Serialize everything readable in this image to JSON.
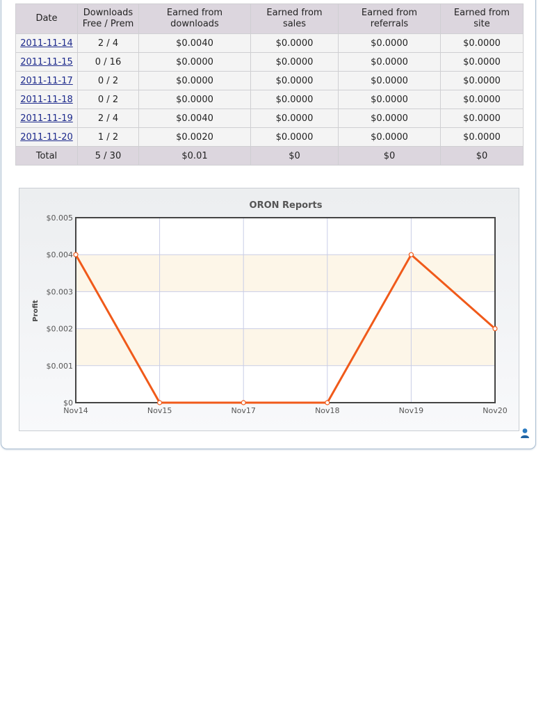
{
  "table": {
    "headers": [
      [
        "Date"
      ],
      [
        "Downloads",
        "Free / Prem"
      ],
      [
        "Earned from",
        "downloads"
      ],
      [
        "Earned from",
        "sales"
      ],
      [
        "Earned from",
        "referrals"
      ],
      [
        "Earned from",
        "site"
      ]
    ],
    "rows": [
      {
        "date": "2011-11-14",
        "downloads": "2 / 4",
        "earned_downloads": "$0.0040",
        "earned_sales": "$0.0000",
        "earned_referrals": "$0.0000",
        "earned_site": "$0.0000"
      },
      {
        "date": "2011-11-15",
        "downloads": "0 / 16",
        "earned_downloads": "$0.0000",
        "earned_sales": "$0.0000",
        "earned_referrals": "$0.0000",
        "earned_site": "$0.0000"
      },
      {
        "date": "2011-11-17",
        "downloads": "0 / 2",
        "earned_downloads": "$0.0000",
        "earned_sales": "$0.0000",
        "earned_referrals": "$0.0000",
        "earned_site": "$0.0000"
      },
      {
        "date": "2011-11-18",
        "downloads": "0 / 2",
        "earned_downloads": "$0.0000",
        "earned_sales": "$0.0000",
        "earned_referrals": "$0.0000",
        "earned_site": "$0.0000"
      },
      {
        "date": "2011-11-19",
        "downloads": "2 / 4",
        "earned_downloads": "$0.0040",
        "earned_sales": "$0.0000",
        "earned_referrals": "$0.0000",
        "earned_site": "$0.0000"
      },
      {
        "date": "2011-11-20",
        "downloads": "1 / 2",
        "earned_downloads": "$0.0020",
        "earned_sales": "$0.0000",
        "earned_referrals": "$0.0000",
        "earned_site": "$0.0000"
      }
    ],
    "total": {
      "label": "Total",
      "downloads": "5 / 30",
      "earned_downloads": "$0.01",
      "earned_sales": "$0",
      "earned_referrals": "$0",
      "earned_site": "$0"
    }
  },
  "chart_data": {
    "type": "line",
    "title": "ORON Reports",
    "xlabel": "",
    "ylabel": "Profit",
    "categories": [
      "Nov14",
      "Nov15",
      "Nov17",
      "Nov18",
      "Nov19",
      "Nov20"
    ],
    "values": [
      0.004,
      0,
      0,
      0,
      0.004,
      0.002
    ],
    "ylim": [
      0,
      0.005
    ],
    "yticks": [
      "$0",
      "$0.001",
      "$0.002",
      "$0.003",
      "$0.004",
      "$0.005"
    ],
    "grid": true,
    "line_color": "#f05a1a",
    "band_color": "#fdf6e8"
  },
  "icons": {
    "user": "user-icon"
  }
}
